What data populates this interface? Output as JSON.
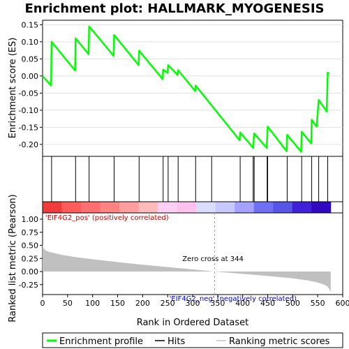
{
  "chart_data": {
    "type": "line",
    "title": "Enrichment plot: HALLMARK_MYOGENESIS",
    "xlabel": "Rank in Ordered Dataset",
    "xlim": [
      0,
      600
    ],
    "x_ticks": [
      0,
      50,
      100,
      150,
      200,
      250,
      300,
      350,
      400,
      450,
      500,
      550,
      600
    ],
    "enrichment_panel": {
      "ylabel": "Enrichment score (ES)",
      "ylim": [
        -0.235,
        0.163
      ],
      "y_ticks": [
        0.15,
        0.1,
        0.05,
        0.0,
        -0.05,
        -0.1,
        -0.15,
        -0.2
      ],
      "y_tick_labels": [
        "0.15",
        "0.10",
        "0.05",
        "0.00",
        "-0.05",
        "-0.10",
        "-0.15",
        "-0.20"
      ],
      "series": [
        {
          "name": "Enrichment profile",
          "color": "#00ff00",
          "x": [
            0,
            17,
            18,
            65,
            66,
            92,
            93,
            142,
            143,
            192,
            193,
            240,
            241,
            250,
            251,
            270,
            271,
            305,
            306,
            394,
            395,
            421,
            423,
            448,
            450,
            488,
            489,
            517,
            518,
            537,
            538,
            548,
            552,
            568,
            570,
            573
          ],
          "y": [
            0.0,
            -0.028,
            0.1,
            0.016,
            0.11,
            0.064,
            0.145,
            0.059,
            0.12,
            0.032,
            0.074,
            -0.009,
            0.019,
            0.009,
            0.032,
            0.003,
            0.017,
            -0.044,
            -0.028,
            -0.188,
            -0.165,
            -0.21,
            -0.168,
            -0.21,
            -0.148,
            -0.22,
            -0.172,
            -0.222,
            -0.163,
            -0.197,
            -0.128,
            -0.148,
            -0.07,
            -0.104,
            0.01,
            0.007
          ]
        }
      ]
    },
    "hits": [
      18,
      66,
      93,
      143,
      193,
      241,
      251,
      271,
      306,
      338,
      395,
      421,
      423,
      449,
      450,
      489,
      518,
      538,
      552,
      570
    ],
    "heatmap_colors": [
      "#ee3c3c",
      "#ff5b5b",
      "#ff6f6f",
      "#ff8383",
      "#ff9e9e",
      "#ffbaba",
      "#ffd0f5",
      "#ffc2ee",
      "#dcdcff",
      "#c8c8ff",
      "#a3a3ff",
      "#7070f2",
      "#5555e8",
      "#4020d8",
      "#3008c0"
    ],
    "ranking_panel": {
      "ylabel": "Ranked list metric (Pearson)",
      "ylim": [
        -0.44,
        1.12
      ],
      "y_ticks": [
        1.0,
        0.75,
        0.5,
        0.25,
        0.0,
        -0.25
      ],
      "y_tick_labels": [
        "1.00",
        "0.75",
        "0.50",
        "0.25",
        "0.00",
        "-0.25"
      ],
      "x": [
        0,
        2,
        5,
        10,
        20,
        40,
        70,
        100,
        150,
        200,
        250,
        300,
        344,
        400,
        450,
        500,
        530,
        550,
        560,
        566,
        570,
        573,
        576
      ],
      "y": [
        0.52,
        0.45,
        0.41,
        0.385,
        0.36,
        0.315,
        0.27,
        0.235,
        0.18,
        0.13,
        0.085,
        0.04,
        0.0,
        -0.045,
        -0.085,
        -0.13,
        -0.17,
        -0.21,
        -0.24,
        -0.265,
        -0.29,
        -0.33,
        -0.39
      ],
      "color": "#c0c0c0",
      "zero_cross": 344,
      "zero_cross_label": "Zero cross at 344",
      "pos_label": "'EIF4G2_pos' (positively correlated)",
      "neg_label": "'EIF4G2_neg' (negatively correlated)"
    },
    "legend": {
      "placement": "bottom",
      "items": [
        {
          "label": "Enrichment profile",
          "color": "#00ff00"
        },
        {
          "label": "Hits",
          "color": "#000000"
        },
        {
          "label": "Ranking metric scores",
          "color": "#c0c0c0"
        }
      ]
    }
  }
}
